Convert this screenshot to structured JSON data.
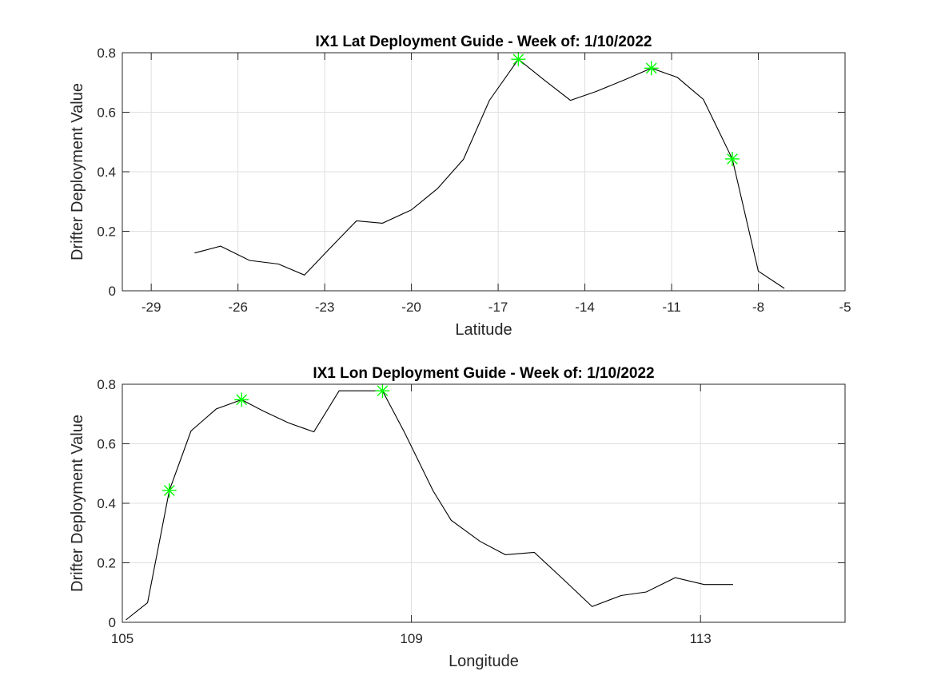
{
  "colors": {
    "line": "#000000",
    "marker": "#00ff00",
    "grid": "#dfdfdf",
    "axes": "#262626"
  },
  "chart_data": [
    {
      "type": "line",
      "title": "IX1 Lat Deployment Guide - Week of: 1/10/2022",
      "xlabel": "Latitude",
      "ylabel": "Drifter Deployment Value",
      "xlim": [
        -30,
        -5
      ],
      "ylim": [
        0,
        0.8
      ],
      "xticks": [
        -29,
        -26,
        -23,
        -20,
        -17,
        -14,
        -11,
        -8,
        -5
      ],
      "xtick_labels": [
        "-29",
        "-26",
        "-23",
        "-20",
        "-17",
        "-14",
        "-11",
        "-8",
        "-5"
      ],
      "yticks": [
        0,
        0.2,
        0.4,
        0.6,
        0.8
      ],
      "ytick_labels": [
        "0",
        "0.2",
        "0.4",
        "0.6",
        "0.8"
      ],
      "grid": true,
      "series": [
        {
          "x": [
            -27.5,
            -26.6,
            -25.6,
            -24.6,
            -23.7,
            -22.8,
            -21.9,
            -21.0,
            -20.0,
            -19.1,
            -18.2,
            -17.3,
            -16.3,
            -15.4,
            -14.5,
            -13.6,
            -12.6,
            -11.7,
            -10.8,
            -9.9,
            -8.9,
            -8.0,
            -7.1
          ],
          "y": [
            0.127,
            0.15,
            0.102,
            0.09,
            0.053,
            0.145,
            0.235,
            0.227,
            0.272,
            0.343,
            0.442,
            0.64,
            0.778,
            0.708,
            0.64,
            0.67,
            0.71,
            0.748,
            0.717,
            0.643,
            0.443,
            0.066,
            0.008
          ]
        }
      ],
      "markers": {
        "x": [
          -16.3,
          -11.7,
          -8.9
        ],
        "y": [
          0.778,
          0.748,
          0.443
        ],
        "symbol": "asterisk"
      }
    },
    {
      "type": "line",
      "title": "IX1 Lon Deployment Guide - Week of: 1/10/2022",
      "xlabel": "Longitude",
      "ylabel": "Drifter Deployment Value",
      "xlim": [
        105,
        115
      ],
      "ylim": [
        0,
        0.8
      ],
      "xticks": [
        105,
        109,
        113
      ],
      "xtick_labels": [
        "105",
        "109",
        "113"
      ],
      "yticks": [
        0,
        0.2,
        0.4,
        0.6,
        0.8
      ],
      "ytick_labels": [
        "0",
        "0.2",
        "0.4",
        "0.6",
        "0.8"
      ],
      "grid": true,
      "series": [
        {
          "x": [
            105.05,
            105.35,
            105.65,
            105.95,
            106.3,
            106.65,
            106.95,
            107.3,
            107.65,
            108.0,
            108.6,
            108.9,
            109.3,
            109.55,
            109.95,
            110.3,
            110.7,
            111.1,
            111.5,
            111.9,
            112.25,
            112.65,
            113.05,
            113.45
          ],
          "y": [
            0.008,
            0.066,
            0.443,
            0.643,
            0.717,
            0.748,
            0.71,
            0.67,
            0.64,
            0.778,
            0.778,
            0.64,
            0.442,
            0.343,
            0.272,
            0.227,
            0.235,
            0.145,
            0.053,
            0.09,
            0.102,
            0.15,
            0.127,
            0.127
          ]
        }
      ],
      "markers": {
        "x": [
          105.65,
          106.65,
          108.6
        ],
        "y": [
          0.443,
          0.748,
          0.778
        ],
        "symbol": "asterisk"
      }
    }
  ]
}
